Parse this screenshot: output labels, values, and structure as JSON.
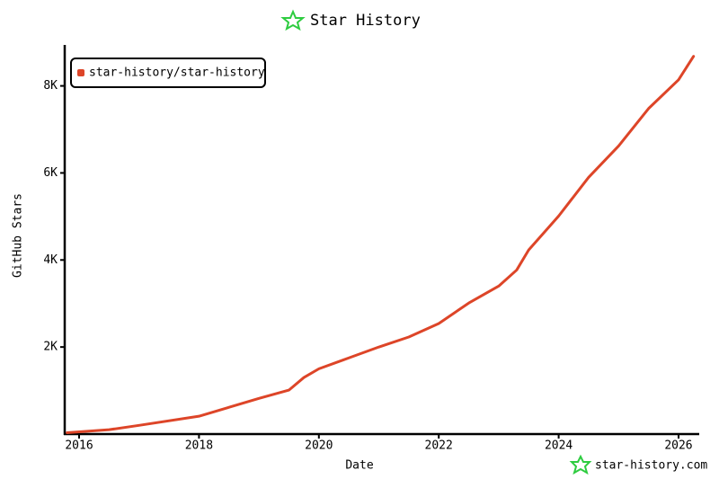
{
  "chart_data": {
    "type": "line",
    "title": "Star History",
    "x_label": "Date",
    "y_label": "GitHub Stars",
    "footer": "star-history.com",
    "x": [
      2015.8,
      2016.5,
      2017,
      2018,
      2019,
      2019.5,
      2019.75,
      2020,
      2020.5,
      2021,
      2021.5,
      2022,
      2022.5,
      2023,
      2023.3,
      2023.5,
      2024,
      2024.5,
      2025,
      2025.5,
      2026,
      2026.25
    ],
    "series": [
      {
        "name": "star-history/star-history",
        "color": "#dd4528",
        "values": [
          30,
          100,
          200,
          410,
          820,
          1010,
          1300,
          1500,
          1750,
          2000,
          2230,
          2540,
          3010,
          3400,
          3770,
          4230,
          5010,
          5900,
          6620,
          7480,
          8140,
          8680
        ]
      }
    ],
    "xlim": [
      2015.76,
      2026.3
    ],
    "xticks": [
      2016,
      2018,
      2020,
      2022,
      2024,
      2026
    ],
    "ylim": [
      0,
      8900
    ],
    "yticks": [
      {
        "value": 2000,
        "label": "2K"
      },
      {
        "value": 4000,
        "label": "4K"
      },
      {
        "value": 6000,
        "label": "6K"
      },
      {
        "value": 8000,
        "label": "8K"
      }
    ],
    "legend": "top-left"
  }
}
